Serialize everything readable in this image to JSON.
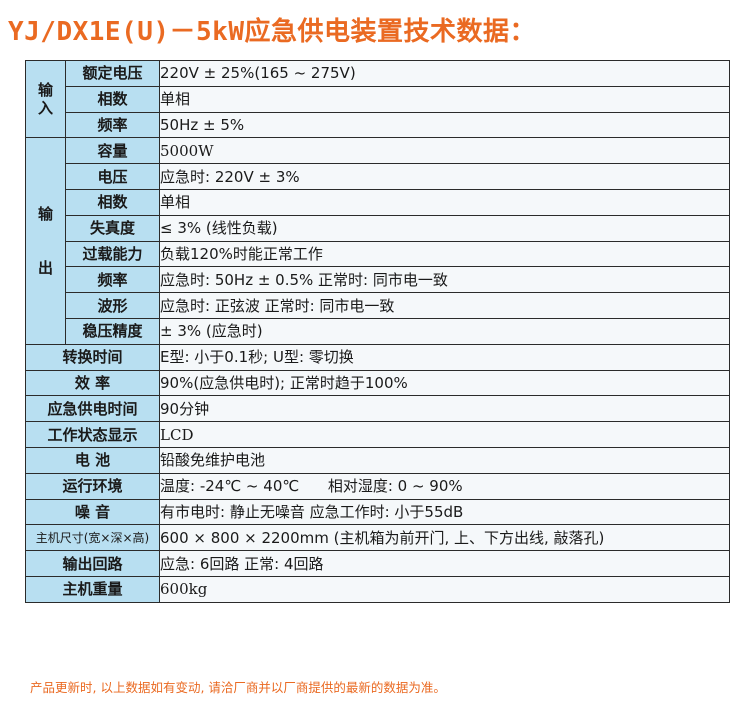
{
  "title": "YJ/DX1E(U)－5kW应急供电装置技术数据：",
  "input_group": [
    "输",
    "入"
  ],
  "output_group": [
    "输",
    "出"
  ],
  "rows": {
    "input_voltage": {
      "label": "额定电压",
      "value": "220V ± 25%(165 ~ 275V)"
    },
    "input_phase": {
      "label": "相数",
      "value": "单相"
    },
    "input_freq": {
      "label": "频率",
      "value": "50Hz ± 5%"
    },
    "out_capacity": {
      "label": "容量",
      "value": "5000W"
    },
    "out_voltage": {
      "label": "电压",
      "value": "应急时: 220V ± 3%"
    },
    "out_phase": {
      "label": "相数",
      "value": "单相"
    },
    "out_distortion": {
      "label": "失真度",
      "value": "≤ 3% (线性负载)"
    },
    "out_overload": {
      "label": "过载能力",
      "value": "负载120%时能正常工作"
    },
    "out_freq": {
      "label": "频率",
      "value": "应急时: 50Hz ± 0.5%  正常时: 同市电一致"
    },
    "out_waveform": {
      "label": "波形",
      "value": "应急时: 正弦波 正常时: 同市电一致"
    },
    "out_regulation": {
      "label": "稳压精度",
      "value": " ± 3% (应急时)"
    },
    "switch_time": {
      "label": "转换时间",
      "value": "E型: 小于0.1秒; U型: 零切换"
    },
    "efficiency": {
      "label": "效 率",
      "value": "90%(应急供电时); 正常时趋于100%"
    },
    "backup_time": {
      "label": "应急供电时间",
      "value": "90分钟"
    },
    "status_display": {
      "label": "工作状态显示",
      "value": "LCD"
    },
    "battery": {
      "label": "电 池",
      "value": "铅酸免维护电池"
    },
    "environment": {
      "label": "运行环境",
      "value": "温度: -24℃ ~ 40℃      相对湿度: 0 ~ 90%"
    },
    "noise": {
      "label": "噪 音",
      "value": "有市电时: 静止无噪音  应急工作时: 小于55dB"
    },
    "dimensions": {
      "label": "主机尺寸(宽×深×高)",
      "value": " 600 × 800 × 2200mm  (主机箱为前开门, 上、下方出线, 敲落孔)"
    },
    "output_circuits": {
      "label": "输出回路",
      "value": " 应急: 6回路  正常: 4回路"
    },
    "weight": {
      "label": "主机重量",
      "value": " 600kg"
    }
  },
  "footnote": "产品更新时, 以上数据如有变动, 请洽厂商并以厂商提供的最新的数据为准。"
}
